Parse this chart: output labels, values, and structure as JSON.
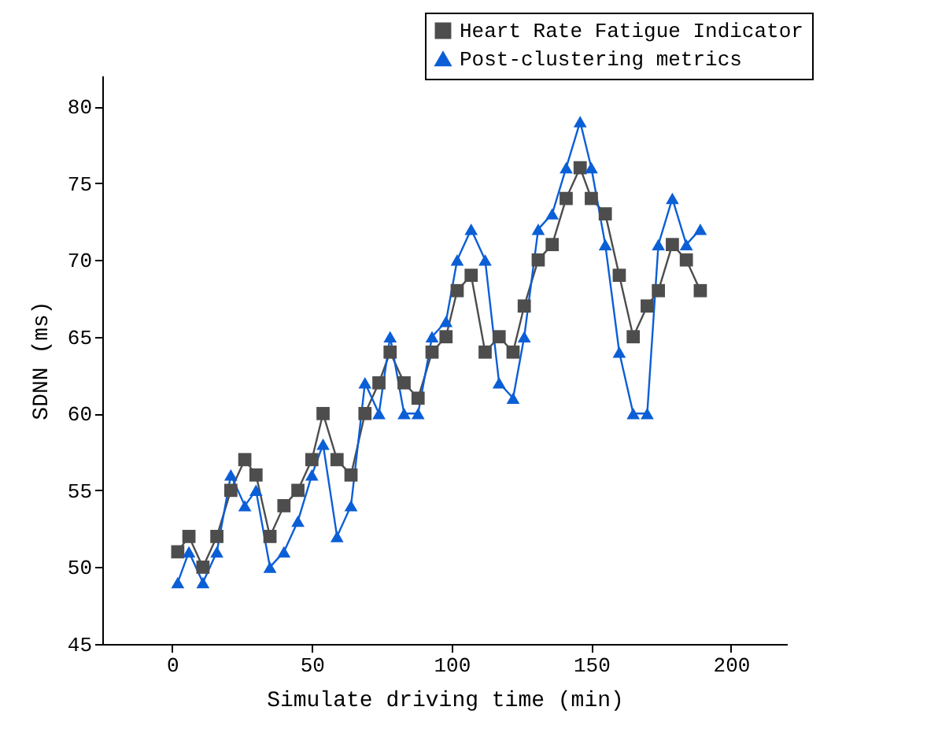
{
  "chart_data": {
    "type": "line",
    "xlabel": "Simulate driving time (min)",
    "ylabel": "SDNN (ms)",
    "x": [
      2,
      6,
      11,
      16,
      21,
      26,
      30,
      35,
      40,
      45,
      50,
      54,
      59,
      64,
      69,
      74,
      78,
      83,
      88,
      93,
      98,
      102,
      107,
      112,
      117,
      122,
      126,
      131,
      136,
      141,
      146,
      150,
      155,
      160,
      165,
      170,
      174,
      179,
      184,
      189
    ],
    "series": [
      {
        "name": "Heart Rate Fatigue Indicator",
        "color": "#4d4d4d",
        "marker": "square",
        "values": [
          51,
          52,
          50,
          52,
          55,
          57,
          56,
          52,
          54,
          55,
          57,
          60,
          57,
          56,
          60,
          62,
          64,
          62,
          61,
          64,
          65,
          68,
          69,
          64,
          65,
          64,
          67,
          70,
          71,
          74,
          76,
          74,
          73,
          69,
          65,
          67,
          68,
          71,
          70,
          68
        ]
      },
      {
        "name": "Post-clustering metrics",
        "color": "#0b5fd6",
        "marker": "triangle",
        "values": [
          49,
          51,
          49,
          51,
          56,
          54,
          55,
          50,
          51,
          53,
          56,
          58,
          52,
          54,
          62,
          60,
          65,
          60,
          60,
          65,
          66,
          70,
          72,
          70,
          62,
          61,
          65,
          72,
          73,
          76,
          79,
          76,
          71,
          64,
          60,
          60,
          71,
          74,
          71,
          72
        ]
      }
    ],
    "xlim": [
      -25,
      220
    ],
    "xticks": [
      0,
      50,
      100,
      150,
      200
    ],
    "ylim": [
      45,
      82
    ],
    "yticks": [
      45,
      50,
      55,
      60,
      65,
      70,
      75,
      80
    ],
    "legend": "top right",
    "line_style": "solid"
  }
}
